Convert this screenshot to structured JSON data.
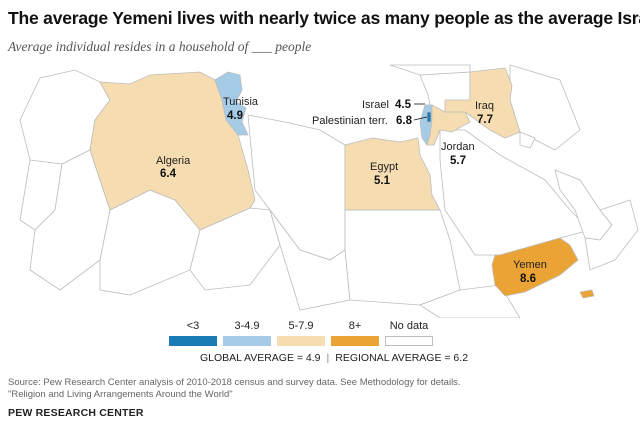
{
  "title": "The average Yemeni lives with nearly twice as many people as the average Israeli",
  "subtitle": "Average individual resides in a household of ___ people",
  "colors": {
    "lt3": "#1b7bb5",
    "c3to49": "#a6cbe6",
    "c5to79": "#f6dcb1",
    "c8plus": "#eba335",
    "nodata": "#ffffff",
    "border": "#bdbdbd",
    "sea": "#ffffff"
  },
  "legend": [
    {
      "label": "<3",
      "color_key": "lt3"
    },
    {
      "label": "3-4.9",
      "color_key": "c3to49"
    },
    {
      "label": "5-7.9",
      "color_key": "c5to79"
    },
    {
      "label": "8+",
      "color_key": "c8plus"
    },
    {
      "label": "No data",
      "color_key": "nodata"
    }
  ],
  "averages": {
    "global": "GLOBAL AVERAGE = 4.9",
    "separator": "|",
    "regional": "REGIONAL AVERAGE = 6.2"
  },
  "countries": [
    {
      "name": "Tunisia",
      "value": "4.9",
      "category": "c3to49"
    },
    {
      "name": "Algeria",
      "value": "6.4",
      "category": "c5to79"
    },
    {
      "name": "Israel",
      "value": "4.5",
      "category": "c3to49"
    },
    {
      "name": "Palestinian terr.",
      "value": "6.8",
      "category": "c5to79"
    },
    {
      "name": "Iraq",
      "value": "7.7",
      "category": "c5to79"
    },
    {
      "name": "Jordan",
      "value": "5.7",
      "category": "c5to79"
    },
    {
      "name": "Egypt",
      "value": "5.1",
      "category": "c5to79"
    },
    {
      "name": "Yemen",
      "value": "8.6",
      "category": "c8plus"
    }
  ],
  "source": [
    "Source: Pew Research Center analysis of 2010-2018 census and survey data. See Methodology for details.",
    "\"Religion and Living Arrangements Around the World\""
  ],
  "brand": "PEW RESEARCH CENTER"
}
